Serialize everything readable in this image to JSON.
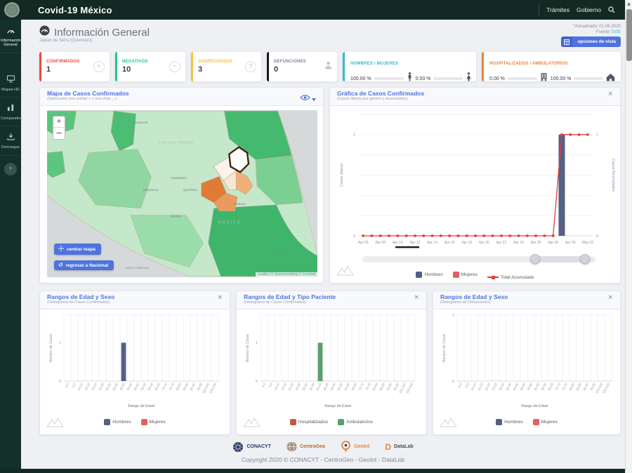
{
  "topbar": {
    "title": "Covid-19 México",
    "nav": [
      {
        "label": "Trámites"
      },
      {
        "label": "Gobierno"
      }
    ]
  },
  "sidebar": {
    "items": [
      {
        "label": "Información General"
      },
      {
        "label": "Mapas HD"
      },
      {
        "label": "Comparativo"
      },
      {
        "label": "Descargas"
      }
    ]
  },
  "header": {
    "title": "Información General",
    "subtitle": "Jalpan de Serra (Queretaro)",
    "updated": "*Actualizado: 01-05-2020",
    "source_label": "Fuente:",
    "source_value": "DGE",
    "options_button": "opciones de vista"
  },
  "stats": {
    "bar_color": "#2fb7c9",
    "cards": [
      {
        "label": "CONFIRMADOS",
        "value": "1",
        "accent": "#e74a3b",
        "label_color": "#e74a3b"
      },
      {
        "label": "NEGATIVOS",
        "value": "10",
        "accent": "#1cc88a",
        "label_color": "#1cc88a"
      },
      {
        "label": "SOSPECHOSOS",
        "value": "3",
        "accent": "#f6c23e",
        "label_color": "#f6c23e"
      },
      {
        "label": "DEFUNCIONES",
        "value": "0",
        "accent": "#16181d",
        "label_color": "#858796"
      }
    ],
    "gender": {
      "label": "HOMBRES / MUJERES",
      "accent": "#36b9cc",
      "label_color": "#36b9cc",
      "male_pct": "100.00 %",
      "female_pct": "0.00 %",
      "male_fill": 100,
      "female_fill": 0
    },
    "patients": {
      "label": "HOSPITALIZADOS / AMBULATORIOS",
      "accent": "#e8823f",
      "label_color": "#e8823f",
      "hospital_pct": "0.00 %",
      "ambulatory_pct": "100.00 %",
      "hospital_fill": 0,
      "ambulatory_fill": 100
    }
  },
  "map_panel": {
    "title": "Mapa de Casos Confirmados",
    "subtitle": "(Seleccione una unidad + o una vista →)",
    "zoom_in": "+",
    "zoom_out": "−",
    "center_button": "centrar mapa",
    "back_button": "regresar a Nacional",
    "attribution": "Leaflet | © OpenStreetMap © CartoDB",
    "labels": [
      {
        "text": "Zacatecas"
      },
      {
        "text": "SAN LUIS POTOSÍ"
      },
      {
        "text": "Guanajuato"
      },
      {
        "text": "Salamanca"
      },
      {
        "text": "Querétaro"
      },
      {
        "text": "Pachuca"
      },
      {
        "text": "Morelia"
      },
      {
        "text": "MÉXICO"
      },
      {
        "text": "Lázaro Cárdenas"
      },
      {
        "text": "Tehuacán"
      }
    ]
  },
  "chart_panel": {
    "title": "Gráfica de Casos Confirmados",
    "subtitle": "(Casos diarios por género y acumulados)"
  },
  "hist_panels": [
    {
      "title": "Rangos de Edad y Sexo",
      "subtitle": "(Histograma de Casos Confirmados)"
    },
    {
      "title": "Rangos de Edad y Tipo Paciente",
      "subtitle": "(Histograma de Casos Confirmados)"
    },
    {
      "title": "Rangos de Edad y Sexo",
      "subtitle": "(Histograma de Defunciones)"
    }
  ],
  "chart_data": [
    {
      "id": "casos_confirmados_diarios",
      "type": "bar+line",
      "title": "Gráfica de Casos Confirmados",
      "x": [
        "Apr 06",
        "Apr 07",
        "Apr 08",
        "Apr 09",
        "Apr 10",
        "Apr 11",
        "Apr 12",
        "Apr 13",
        "Apr 14",
        "Apr 15",
        "Apr 16",
        "Apr 17",
        "Apr 18",
        "Apr 19",
        "Apr 20",
        "Apr 21",
        "Apr 22",
        "Apr 23",
        "Apr 24",
        "Apr 25",
        "Apr 26",
        "Apr 27",
        "Apr 28",
        "Apr 29",
        "Apr 30",
        "May 01",
        "May 02"
      ],
      "tick_every": 2,
      "ylabel_left": "Casos diarios",
      "ylabel_right": "Casos Acumulados",
      "ylim": [
        0,
        1.2
      ],
      "yticks": [
        0,
        1
      ],
      "series": [
        {
          "name": "Hombres",
          "type": "bar",
          "color": "#565f85",
          "values": [
            0,
            0,
            0,
            0,
            0,
            0,
            0,
            0,
            0,
            0,
            0,
            0,
            0,
            0,
            0,
            0,
            0,
            0,
            0,
            0,
            0,
            0,
            0,
            1,
            0,
            0,
            0
          ]
        },
        {
          "name": "Mujeres",
          "type": "bar",
          "color": "#e4605e",
          "values": [
            0,
            0,
            0,
            0,
            0,
            0,
            0,
            0,
            0,
            0,
            0,
            0,
            0,
            0,
            0,
            0,
            0,
            0,
            0,
            0,
            0,
            0,
            0,
            0,
            0,
            0,
            0
          ]
        },
        {
          "name": "Total Acumulado",
          "type": "line",
          "color": "#e0413c",
          "values": [
            0,
            0,
            0,
            0,
            0,
            0,
            0,
            0,
            0,
            0,
            0,
            0,
            0,
            0,
            0,
            0,
            0,
            0,
            0,
            0,
            0,
            0,
            0,
            1,
            1,
            1,
            1
          ]
        }
      ]
    },
    {
      "id": "edad_sexo_confirmados",
      "type": "bar",
      "title": "Rangos de Edad y Sexo (Casos Confirmados)",
      "categories": [
        "0-4",
        "5-9",
        "10-14",
        "15-19",
        "20-24",
        "25-29",
        "30-34",
        "35-39",
        "40-44",
        "45-49",
        "50-54",
        "55-59",
        "60-64",
        "65-69",
        "70-74",
        "75-79",
        "80-84",
        "85-89",
        "90-94",
        "95-99",
        "100-104",
        "105-109"
      ],
      "xlabel": "Rango de Edad",
      "ylabel": "Número de Casos",
      "ylim": [
        0,
        1.72
      ],
      "yticks": [
        1,
        0
      ],
      "series": [
        {
          "name": "Hombres",
          "color": "#565f85",
          "values": [
            0,
            0,
            0,
            0,
            0,
            0,
            0,
            0,
            1,
            0,
            0,
            0,
            0,
            0,
            0,
            0,
            0,
            0,
            0,
            0,
            0,
            0
          ]
        },
        {
          "name": "Mujeres",
          "color": "#e4605e",
          "values": [
            0,
            0,
            0,
            0,
            0,
            0,
            0,
            0,
            0,
            0,
            0,
            0,
            0,
            0,
            0,
            0,
            0,
            0,
            0,
            0,
            0,
            0
          ]
        }
      ]
    },
    {
      "id": "edad_tipo_paciente_confirmados",
      "type": "bar",
      "title": "Rangos de Edad y Tipo Paciente (Casos Confirmados)",
      "categories": [
        "0-4",
        "5-9",
        "10-14",
        "15-19",
        "20-24",
        "25-29",
        "30-34",
        "35-39",
        "40-44",
        "45-49",
        "50-54",
        "55-59",
        "60-64",
        "65-69",
        "70-74",
        "75-79",
        "80-84",
        "85-89",
        "90-94",
        "95-99",
        "100-104",
        "105-109"
      ],
      "xlabel": "Rango de Edad",
      "ylabel": "Número de Casos",
      "ylim": [
        0,
        1.72
      ],
      "yticks": [
        1,
        0
      ],
      "series": [
        {
          "name": "Hospitalizados",
          "color": "#bb5d43",
          "values": [
            0,
            0,
            0,
            0,
            0,
            0,
            0,
            0,
            0,
            0,
            0,
            0,
            0,
            0,
            0,
            0,
            0,
            0,
            0,
            0,
            0,
            0
          ]
        },
        {
          "name": "Ambulatorios",
          "color": "#5a9e6f",
          "values": [
            0,
            0,
            0,
            0,
            0,
            0,
            0,
            0,
            1,
            0,
            0,
            0,
            0,
            0,
            0,
            0,
            0,
            0,
            0,
            0,
            0,
            0
          ]
        }
      ]
    },
    {
      "id": "edad_sexo_defunciones",
      "type": "bar",
      "title": "Rangos de Edad y Sexo (Defunciones)",
      "categories": [
        "0-4",
        "5-9",
        "10-14",
        "15-19",
        "20-24",
        "25-29",
        "30-34",
        "35-39",
        "40-44",
        "45-49",
        "50-54",
        "55-59",
        "60-64",
        "65-69",
        "70-74",
        "75-79",
        "80-84",
        "85-89",
        "90-94",
        "95-99",
        "100-104",
        "105-109"
      ],
      "xlabel": "Rango de Edad",
      "ylabel": "Número de Casos",
      "ylim": [
        -1,
        1
      ],
      "yticks": [
        1,
        -1
      ],
      "series": [
        {
          "name": "Hombres",
          "color": "#565f85",
          "values": [
            0,
            0,
            0,
            0,
            0,
            0,
            0,
            0,
            0,
            0,
            0,
            0,
            0,
            0,
            0,
            0,
            0,
            0,
            0,
            0,
            0,
            0
          ]
        },
        {
          "name": "Mujeres",
          "color": "#e4605e",
          "values": [
            0,
            0,
            0,
            0,
            0,
            0,
            0,
            0,
            0,
            0,
            0,
            0,
            0,
            0,
            0,
            0,
            0,
            0,
            0,
            0,
            0,
            0
          ]
        }
      ]
    }
  ],
  "footer": {
    "logos": [
      {
        "name": "CONACYT"
      },
      {
        "name": "CentroGeo"
      },
      {
        "name": "GeoInt"
      },
      {
        "name": "DataLab"
      }
    ],
    "copyright": "Copyright 2020 © CONACYT - CentroGeo - GeoInt - DataLab"
  }
}
